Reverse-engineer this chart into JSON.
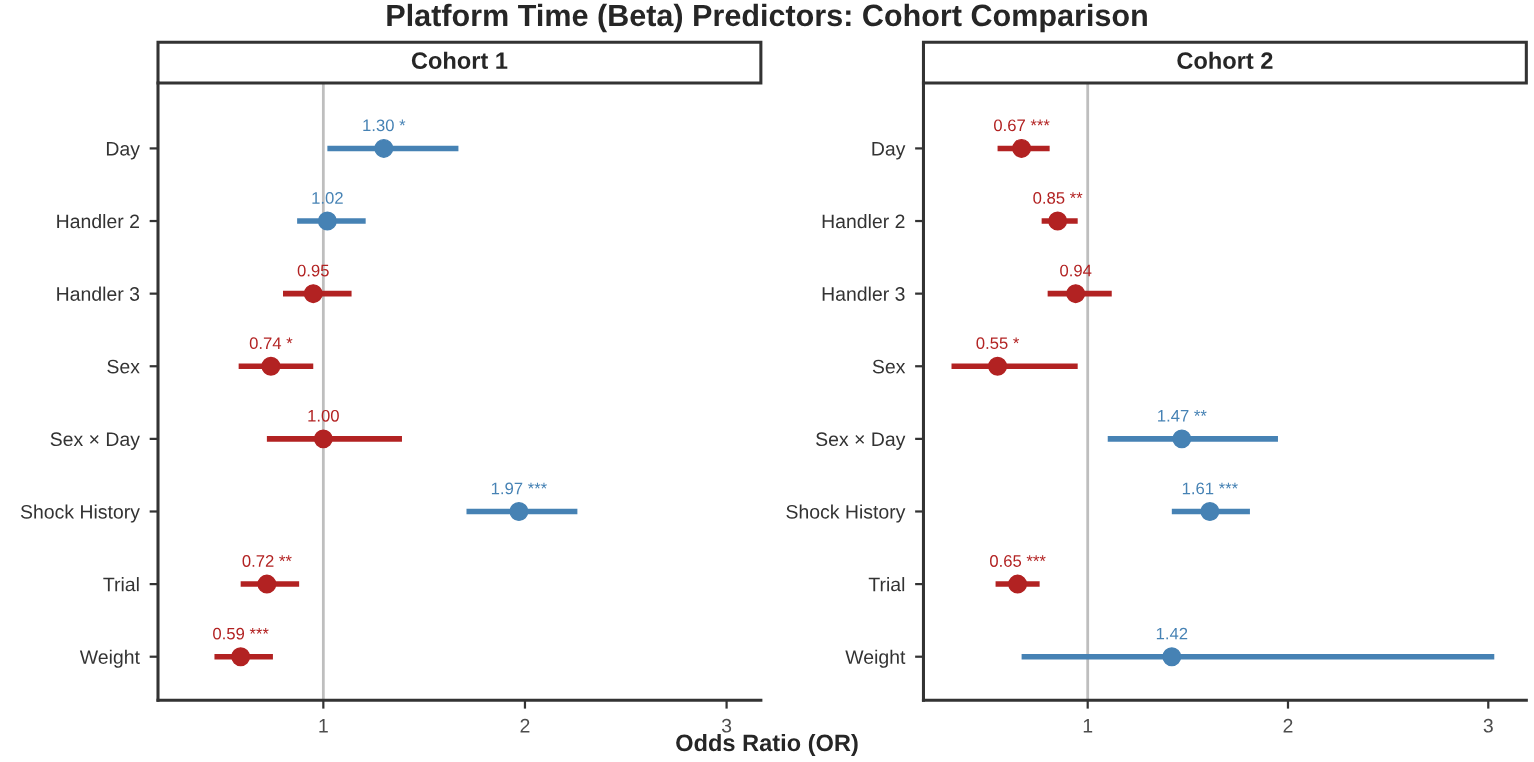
{
  "chart_data": [
    {
      "type": "scatter",
      "orientation": "horizontal",
      "title": "Cohort 1",
      "xlabel": "Odds Ratio (OR)",
      "annotations": [
        "Platform Time (Beta) Predictors: Cohort Comparison"
      ],
      "categories": [
        "Day",
        "Handler 2",
        "Handler 3",
        "Sex",
        "Sex × Day",
        "Shock History",
        "Trial",
        "Weight"
      ],
      "values": [
        1.3,
        1.02,
        0.95,
        0.74,
        1.0,
        1.97,
        0.72,
        0.59
      ],
      "errors": [
        [
          1.02,
          1.67
        ],
        [
          0.87,
          1.21
        ],
        [
          0.8,
          1.14
        ],
        [
          0.58,
          0.95
        ],
        [
          0.72,
          1.39
        ],
        [
          1.71,
          2.26
        ],
        [
          0.59,
          0.88
        ],
        [
          0.46,
          0.75
        ]
      ],
      "colors": [
        "#4682b4",
        "#4682b4",
        "#b22222",
        "#b22222",
        "#b22222",
        "#4682b4",
        "#b22222",
        "#b22222"
      ],
      "value_labels": [
        "1.30 *",
        "1.02",
        "0.95",
        "0.74 *",
        "1.00",
        "1.97 ***",
        "0.72 **",
        "0.59 ***"
      ],
      "xlim": [
        0.18,
        3.17
      ],
      "xticks": [
        1,
        2,
        3
      ],
      "marker": "circle",
      "grid": false,
      "legend": false,
      "ref_lines": [
        {
          "axis": "x",
          "value": 1,
          "color": "#bebebe"
        }
      ]
    },
    {
      "type": "scatter",
      "orientation": "horizontal",
      "title": "Cohort 2",
      "categories": [
        "Day",
        "Handler 2",
        "Handler 3",
        "Sex",
        "Sex × Day",
        "Shock History",
        "Trial",
        "Weight"
      ],
      "values": [
        0.67,
        0.85,
        0.94,
        0.55,
        1.47,
        1.61,
        0.65,
        1.42
      ],
      "errors": [
        [
          0.55,
          0.81
        ],
        [
          0.77,
          0.95
        ],
        [
          0.8,
          1.12
        ],
        [
          0.32,
          0.95
        ],
        [
          1.1,
          1.95
        ],
        [
          1.42,
          1.81
        ],
        [
          0.54,
          0.76
        ],
        [
          0.67,
          3.03
        ]
      ],
      "colors": [
        "#b22222",
        "#b22222",
        "#b22222",
        "#b22222",
        "#4682b4",
        "#4682b4",
        "#b22222",
        "#4682b4"
      ],
      "value_labels": [
        "0.67 ***",
        "0.85 **",
        "0.94",
        "0.55 *",
        "1.47 **",
        "1.61 ***",
        "0.65 ***",
        "1.42"
      ],
      "xlim": [
        0.18,
        3.19
      ],
      "xticks": [
        1,
        2,
        3
      ],
      "marker": "circle",
      "grid": false,
      "legend": false,
      "ref_lines": [
        {
          "axis": "x",
          "value": 1,
          "color": "#bebebe"
        }
      ]
    }
  ]
}
